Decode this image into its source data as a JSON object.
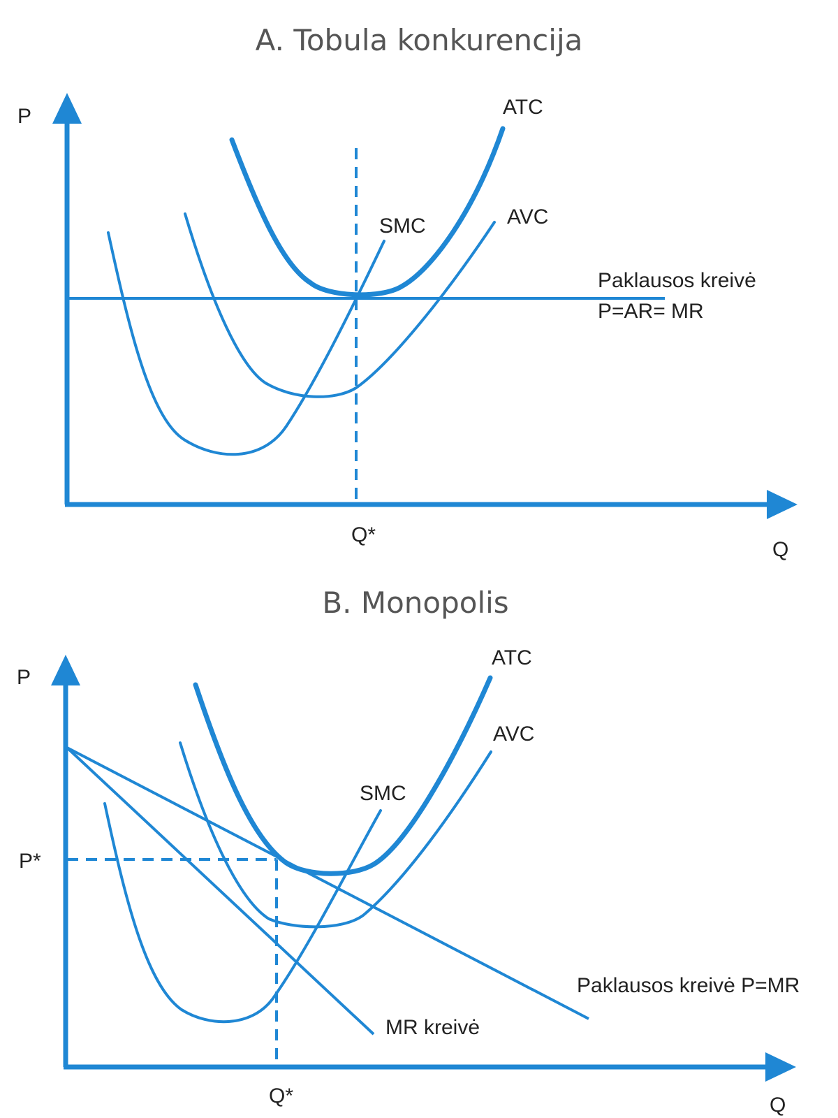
{
  "colors": {
    "accent": "#1f87d4",
    "title_text": "#555555",
    "label_text": "#222222"
  },
  "panel_a": {
    "title": "A. Tobula konkurencija",
    "y_axis_label": "P",
    "x_axis_label": "Q",
    "q_star_label": "Q*",
    "curves": {
      "atc": "ATC",
      "avc": "AVC",
      "smc": "SMC",
      "demand_line1": "Paklausos kreivė",
      "demand_line2": "P=AR= MR"
    }
  },
  "panel_b": {
    "title": "B. Monopolis",
    "y_axis_label": "P",
    "x_axis_label": "Q",
    "q_star_label": "Q*",
    "p_star_label": "P*",
    "curves": {
      "atc": "ATC",
      "avc": "AVC",
      "smc": "SMC",
      "demand": "Paklausos kreivė P=MR",
      "mr": "MR kreivė"
    }
  }
}
